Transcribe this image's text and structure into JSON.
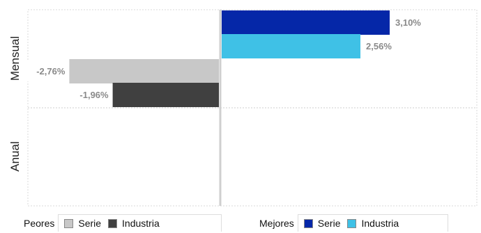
{
  "chart_data": {
    "type": "bar",
    "orientation": "horizontal",
    "categories": [
      "Mensual",
      "Anual"
    ],
    "series": [
      {
        "name": "Serie",
        "group": "Mejores",
        "values": [
          3.1,
          null
        ],
        "labels": [
          "3,10%",
          ""
        ],
        "color": "#0527a8"
      },
      {
        "name": "Industria",
        "group": "Mejores",
        "values": [
          2.56,
          null
        ],
        "labels": [
          "2,56%",
          ""
        ],
        "color": "#3fc1e6"
      },
      {
        "name": "Serie",
        "group": "Peores",
        "values": [
          -2.76,
          null
        ],
        "labels": [
          "-2,76%",
          ""
        ],
        "color": "#c8c8c8"
      },
      {
        "name": "Industria",
        "group": "Peores",
        "values": [
          -1.96,
          null
        ],
        "labels": [
          "-1,96%",
          ""
        ],
        "color": "#404040"
      }
    ],
    "xlim": [
      -3.55,
      3.55
    ],
    "grid": true
  },
  "legend": {
    "worst": {
      "title": "Peores",
      "items": [
        {
          "label": "Serie",
          "color": "#c8c8c8"
        },
        {
          "label": "Industria",
          "color": "#404040"
        }
      ]
    },
    "best": {
      "title": "Mejores",
      "items": [
        {
          "label": "Serie",
          "color": "#0527a8"
        },
        {
          "label": "Industria",
          "color": "#3fc1e6"
        }
      ]
    }
  }
}
